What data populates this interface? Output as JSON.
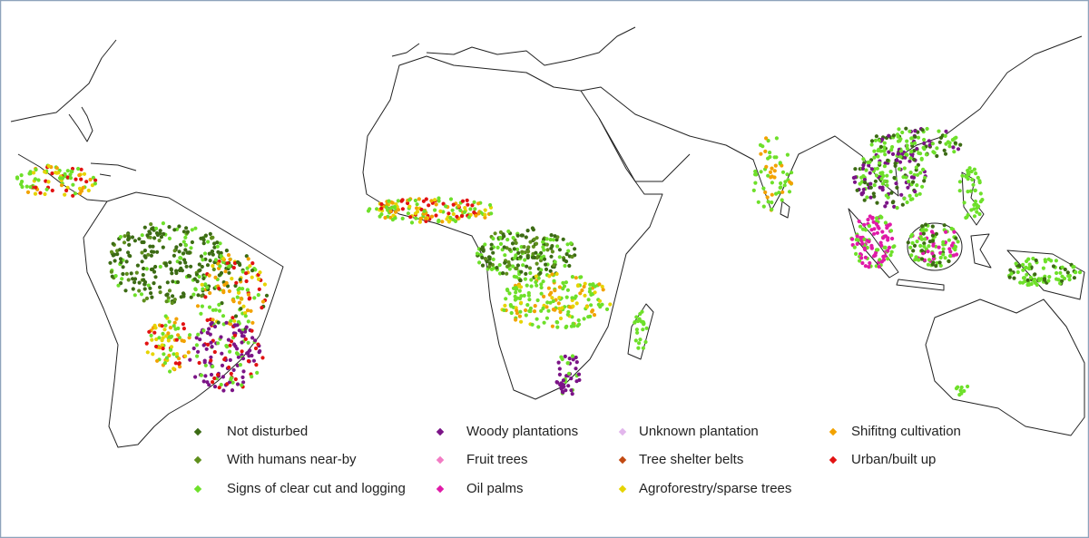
{
  "legend": {
    "items": [
      {
        "label": "Not disturbed",
        "color": "#3c6b14"
      },
      {
        "label": "With humans near-by",
        "color": "#5f8f1c"
      },
      {
        "label": "Signs of clear cut and logging",
        "color": "#6ee02a"
      },
      {
        "label": "Woody plantations",
        "color": "#7b1487"
      },
      {
        "label": "Fruit trees",
        "color": "#f27cc4"
      },
      {
        "label": "Oil palms",
        "color": "#e01aa8"
      },
      {
        "label": "Unknown plantation",
        "color": "#e2b6ec"
      },
      {
        "label": "Tree shelter belts",
        "color": "#c24a12"
      },
      {
        "label": "Agroforestry/sparse trees",
        "color": "#e6d400"
      },
      {
        "label": "Shifitng cultivation",
        "color": "#f2a200"
      },
      {
        "label": "Urban/built up",
        "color": "#e21212"
      }
    ]
  }
}
